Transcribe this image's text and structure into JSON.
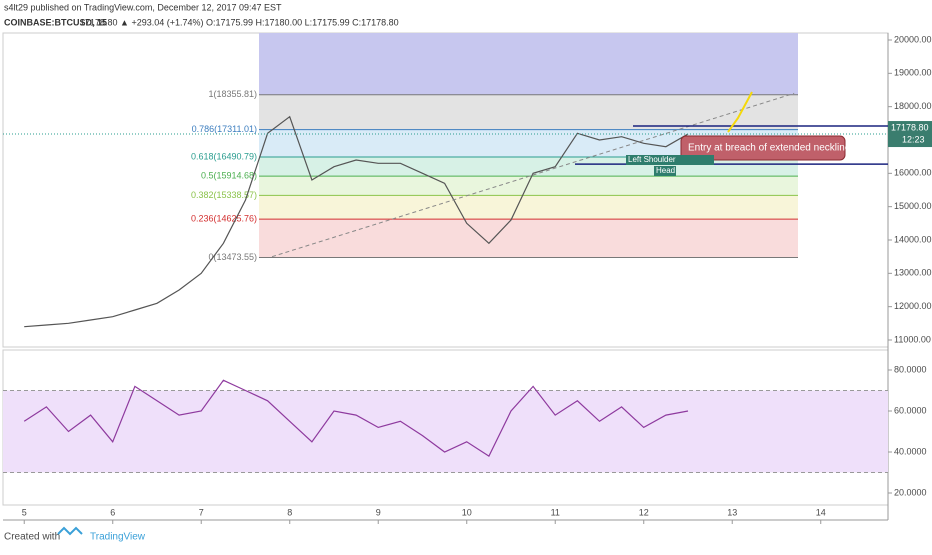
{
  "header": {
    "publisher": "s4lt29 published on TradingView.com, December 12, 2017 09:47 EST",
    "symbol": "COINBASE:BTCUSD, 15",
    "quote": "17178.80 ▲ +293.04 (+1.74%) O:17175.99 H:17180.00 L:17175.99 C:17178.80"
  },
  "footer": {
    "created": "Created with",
    "brand": "TradingView"
  },
  "chart_data": [
    {
      "type": "line",
      "name": "price",
      "color": "#555555",
      "x": [
        5,
        5.25,
        5.5,
        5.75,
        6,
        6.25,
        6.5,
        6.75,
        7,
        7.25,
        7.5,
        7.75,
        8,
        8.25,
        8.5,
        8.75,
        9,
        9.25,
        9.5,
        9.75,
        10,
        10.25,
        10.5,
        10.75,
        11,
        11.25,
        11.5,
        11.75,
        12,
        12.25,
        12.5
      ],
      "values": [
        11400,
        11450,
        11500,
        11600,
        11700,
        11900,
        12100,
        12500,
        13000,
        13900,
        15200,
        17200,
        17700,
        15800,
        16200,
        16400,
        16300,
        16300,
        16000,
        15700,
        14500,
        13900,
        14600,
        16000,
        16200,
        17200,
        17000,
        17100,
        16900,
        16800,
        17179
      ],
      "xlim": [
        4.76,
        14.76
      ],
      "xticks": [
        5,
        6,
        7,
        8,
        9,
        10,
        11,
        12,
        13,
        14
      ],
      "ylim": [
        10790,
        20210
      ],
      "yticks": [
        {
          "value": 11000,
          "label": "11000.00"
        },
        {
          "value": 12000,
          "label": "12000.00"
        },
        {
          "value": 13000,
          "label": "13000.00"
        },
        {
          "value": 14000,
          "label": "14000.00"
        },
        {
          "value": 15000,
          "label": "15000.00"
        },
        {
          "value": 16000,
          "label": "16000.00"
        },
        {
          "value": 17000,
          "label": "17000.00"
        },
        {
          "value": 18000,
          "label": "18000.00"
        },
        {
          "value": 19000,
          "label": "19000.00"
        },
        {
          "value": 20000,
          "label": "20000.00"
        }
      ],
      "fib_levels": [
        {
          "value": 18355.81,
          "label": "1(18355.81)",
          "color": "#787878"
        },
        {
          "value": 17311.01,
          "label": "0.786(17311.01)",
          "color": "#3c7ebf"
        },
        {
          "value": 16490.79,
          "label": "0.618(16490.79)",
          "color": "#2a9d8f"
        },
        {
          "value": 15914.68,
          "label": "0.5(15914.68)",
          "color": "#4caf50"
        },
        {
          "value": 15338.57,
          "label": "0.382(15338.57)",
          "color": "#8bc34a"
        },
        {
          "value": 14625.76,
          "label": "0.236(14625.76)",
          "color": "#d32f2f"
        },
        {
          "value": 13473.55,
          "label": "0(13473.55)",
          "color": "#787878"
        }
      ],
      "last_price": {
        "value": 17178.8,
        "label": "17178.80",
        "timer": "12:23"
      },
      "annotations": [
        "Entry at breach of extended neckline",
        "Left Shoulder",
        "Head"
      ]
    },
    {
      "type": "line",
      "name": "rsi",
      "color": "#8e3a9e",
      "x": [
        5,
        5.25,
        5.5,
        5.75,
        6,
        6.25,
        6.5,
        6.75,
        7,
        7.25,
        7.5,
        7.75,
        8,
        8.25,
        8.5,
        8.75,
        9,
        9.25,
        9.5,
        9.75,
        10,
        10.25,
        10.5,
        10.75,
        11,
        11.25,
        11.5,
        11.75,
        12,
        12.25,
        12.5
      ],
      "values": [
        55,
        62,
        50,
        58,
        45,
        72,
        65,
        58,
        60,
        75,
        70,
        65,
        55,
        45,
        60,
        58,
        52,
        55,
        48,
        40,
        45,
        38,
        60,
        72,
        58,
        65,
        55,
        62,
        52,
        58,
        60
      ],
      "ylim": [
        14.15,
        89.76
      ],
      "yticks": [
        {
          "value": 20,
          "label": "20.0000"
        },
        {
          "value": 40,
          "label": "40.0000"
        },
        {
          "value": 60,
          "label": "60.0000"
        },
        {
          "value": 80,
          "label": "80.0000"
        }
      ],
      "bands": [
        30,
        70
      ]
    }
  ]
}
